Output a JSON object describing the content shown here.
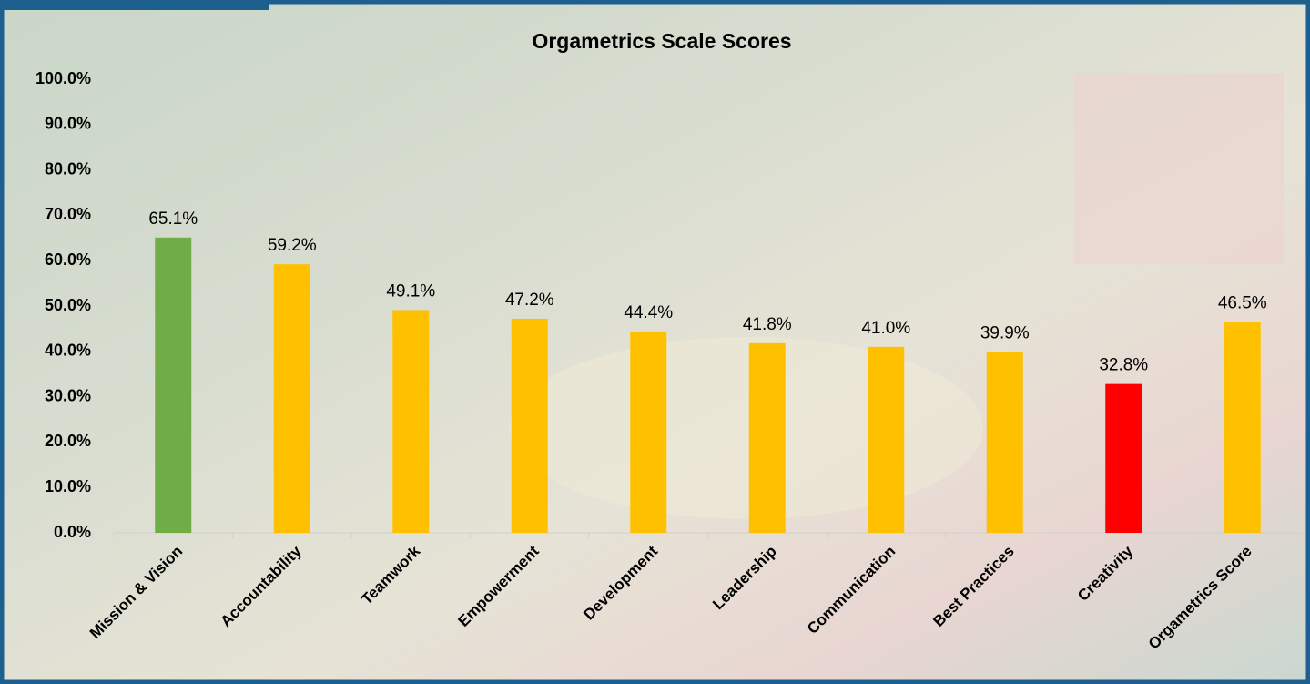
{
  "chart_data": {
    "type": "bar",
    "title": "Orgametrics Scale Scores",
    "categories": [
      "Mission & Vision",
      "Accountability",
      "Teamwork",
      "Empowerment",
      "Development",
      "Leadership",
      "Communication",
      "Best Practices",
      "Creativity",
      "Orgametrics Score"
    ],
    "values": [
      65.1,
      59.2,
      49.1,
      47.2,
      44.4,
      41.8,
      41.0,
      39.9,
      32.8,
      46.5
    ],
    "value_labels": [
      "65.1%",
      "59.2%",
      "49.1%",
      "47.2%",
      "44.4%",
      "41.8%",
      "41.0%",
      "39.9%",
      "32.8%",
      "46.5%"
    ],
    "colors": [
      "#70ad47",
      "#ffc000",
      "#ffc000",
      "#ffc000",
      "#ffc000",
      "#ffc000",
      "#ffc000",
      "#ffc000",
      "#ff0000",
      "#ffc000"
    ],
    "ylim": [
      0,
      100
    ],
    "yticks": [
      {
        "value": 0,
        "label": "0.0%"
      },
      {
        "value": 10,
        "label": "10.0%"
      },
      {
        "value": 20,
        "label": "20.0%"
      },
      {
        "value": 30,
        "label": "30.0%"
      },
      {
        "value": 40,
        "label": "40.0%"
      },
      {
        "value": 50,
        "label": "50.0%"
      },
      {
        "value": 60,
        "label": "60.0%"
      },
      {
        "value": 70,
        "label": "70.0%"
      },
      {
        "value": 80,
        "label": "80.0%"
      },
      {
        "value": 90,
        "label": "90.0%"
      },
      {
        "value": 100,
        "label": "100.0%"
      }
    ],
    "grid": false
  }
}
